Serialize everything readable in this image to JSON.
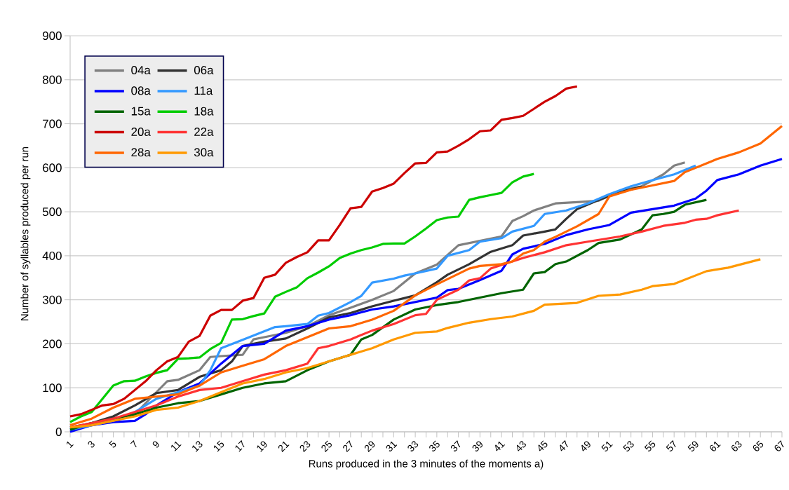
{
  "chart_data": {
    "type": "line",
    "xlabel": "Runs produced in the 3 minutes of the moments a)",
    "ylabel": "Number of syllables produced per run",
    "xlim": [
      1,
      67
    ],
    "xticks": [
      1,
      {
        "value": 2,
        "label": null
      },
      3,
      {
        "value": 4,
        "label": null
      },
      5,
      {
        "value": 6,
        "label": null
      },
      7,
      {
        "value": 8,
        "label": null
      },
      9,
      {
        "value": 10,
        "label": null
      },
      11,
      {
        "value": 12,
        "label": null
      },
      13,
      {
        "value": 14,
        "label": null
      },
      15,
      {
        "value": 16,
        "label": null
      },
      17,
      {
        "value": 18,
        "label": null
      },
      19,
      {
        "value": 20,
        "label": null
      },
      21,
      {
        "value": 22,
        "label": null
      },
      23,
      {
        "value": 24,
        "label": null
      },
      25,
      {
        "value": 26,
        "label": null
      },
      27,
      {
        "value": 28,
        "label": null
      },
      29,
      {
        "value": 30,
        "label": null
      },
      31,
      {
        "value": 32,
        "label": null
      },
      33,
      {
        "value": 34,
        "label": null
      },
      35,
      {
        "value": 36,
        "label": null
      },
      37,
      {
        "value": 38,
        "label": null
      },
      39,
      {
        "value": 40,
        "label": null
      },
      41,
      {
        "value": 42,
        "label": null
      },
      43,
      {
        "value": 44,
        "label": null
      },
      45,
      {
        "value": 46,
        "label": null
      },
      47,
      {
        "value": 48,
        "label": null
      },
      49,
      {
        "value": 50,
        "label": null
      },
      51,
      {
        "value": 52,
        "label": null
      },
      53,
      {
        "value": 54,
        "label": null
      },
      55,
      {
        "value": 56,
        "label": null
      },
      57,
      {
        "value": 58,
        "label": null
      },
      59,
      {
        "value": 60,
        "label": null
      },
      61,
      {
        "value": 62,
        "label": null
      },
      63,
      {
        "value": 64,
        "label": null
      },
      65,
      {
        "value": 66,
        "label": null
      },
      67
    ],
    "ylim": [
      0,
      900
    ],
    "yticks": [
      0,
      100,
      200,
      300,
      400,
      500,
      600,
      700,
      800,
      900
    ],
    "grid": "y",
    "legend": "top left",
    "marker": "none",
    "line_style": "solid",
    "series": [
      {
        "name": "04a",
        "color": "#808080",
        "x": [
          1,
          3,
          5,
          7,
          9,
          10,
          11,
          13,
          14,
          15,
          17,
          18,
          19,
          21,
          23,
          25,
          27,
          29,
          31,
          33,
          35,
          37,
          39,
          41,
          42,
          43,
          44,
          46,
          48,
          50,
          52,
          54,
          56,
          57,
          58
        ],
        "values": [
          10,
          15,
          30,
          40,
          90,
          115,
          118,
          140,
          170,
          172,
          175,
          210,
          215,
          225,
          240,
          265,
          282,
          300,
          320,
          360,
          380,
          424,
          434,
          444,
          479,
          490,
          503,
          519,
          522,
          525,
          548,
          558,
          585,
          605,
          612
        ]
      },
      {
        "name": "06a",
        "color": "#333333",
        "x": [
          1,
          3,
          5,
          7,
          9,
          11,
          13,
          15,
          16,
          17,
          19,
          21,
          23,
          25,
          27,
          29,
          31,
          33,
          35,
          36,
          38,
          40,
          42,
          43,
          45,
          46,
          47,
          48,
          50,
          52,
          54
        ],
        "values": [
          10,
          20,
          35,
          60,
          88,
          95,
          125,
          140,
          160,
          195,
          205,
          212,
          235,
          260,
          270,
          285,
          298,
          310,
          340,
          357,
          381,
          409,
          424,
          446,
          455,
          460,
          484,
          506,
          527,
          545,
          557
        ]
      },
      {
        "name": "08a",
        "color": "#0000ff",
        "x": [
          1,
          3,
          5,
          7,
          8,
          9,
          11,
          13,
          15,
          17,
          19,
          21,
          23,
          25,
          27,
          29,
          31,
          33,
          35,
          36,
          37,
          39,
          41,
          42,
          43,
          45,
          47,
          49,
          51,
          53,
          55,
          57,
          59,
          60,
          61,
          63,
          65,
          67
        ],
        "values": [
          0,
          15,
          22,
          25,
          40,
          60,
          90,
          110,
          155,
          195,
          200,
          230,
          240,
          255,
          265,
          278,
          285,
          295,
          305,
          322,
          325,
          345,
          366,
          403,
          416,
          427,
          447,
          460,
          470,
          498,
          506,
          514,
          530,
          548,
          572,
          585,
          605,
          620
        ]
      },
      {
        "name": "11a",
        "color": "#3399ff",
        "x": [
          1,
          3,
          5,
          7,
          9,
          11,
          13,
          14,
          15,
          17,
          20,
          21,
          23,
          24,
          25,
          27,
          28,
          29,
          31,
          32,
          33,
          35,
          36,
          38,
          39,
          41,
          42,
          44,
          45,
          47,
          49,
          51,
          53,
          55,
          57,
          59
        ],
        "values": [
          5,
          15,
          25,
          45,
          75,
          90,
          105,
          140,
          190,
          209,
          238,
          240,
          245,
          264,
          270,
          295,
          309,
          339,
          348,
          355,
          360,
          371,
          400,
          413,
          432,
          440,
          455,
          468,
          495,
          503,
          519,
          540,
          558,
          572,
          585,
          605
        ]
      },
      {
        "name": "15a",
        "color": "#006400",
        "x": [
          1,
          3,
          5,
          7,
          9,
          11,
          13,
          15,
          17,
          19,
          21,
          23,
          25,
          27,
          28,
          29,
          31,
          33,
          35,
          37,
          39,
          41,
          43,
          44,
          45,
          46,
          47,
          49,
          50,
          52,
          54,
          55,
          56,
          57,
          58,
          60
        ],
        "values": [
          5,
          20,
          30,
          40,
          55,
          65,
          70,
          85,
          100,
          110,
          115,
          140,
          160,
          175,
          210,
          220,
          255,
          278,
          288,
          295,
          305,
          315,
          323,
          360,
          363,
          381,
          387,
          413,
          429,
          437,
          460,
          492,
          495,
          500,
          516,
          527
        ]
      },
      {
        "name": "18a",
        "color": "#00cc00",
        "x": [
          1,
          2,
          3,
          4,
          5,
          6,
          7,
          8,
          9,
          10,
          11,
          12,
          13,
          14,
          15,
          16,
          17,
          18,
          19,
          20,
          21,
          22,
          23,
          24,
          25,
          26,
          27,
          28,
          29,
          30,
          31,
          32,
          33,
          34,
          35,
          36,
          37,
          38,
          39,
          40,
          41,
          42,
          43,
          44
        ],
        "values": [
          22,
          35,
          45,
          75,
          105,
          115,
          116,
          126,
          134,
          140,
          166,
          167,
          169,
          188,
          202,
          255,
          256,
          263,
          269,
          307,
          318,
          328,
          349,
          362,
          376,
          395,
          405,
          413,
          419,
          427,
          428,
          428,
          444,
          462,
          481,
          487,
          489,
          527,
          533,
          538,
          543,
          567,
          580,
          586
        ]
      },
      {
        "name": "20a",
        "color": "#cc0000",
        "x": [
          1,
          2,
          3,
          4,
          5,
          6,
          7,
          8,
          9,
          10,
          11,
          12,
          13,
          14,
          15,
          16,
          17,
          18,
          19,
          20,
          21,
          22,
          23,
          24,
          25,
          26,
          27,
          28,
          29,
          30,
          31,
          32,
          33,
          34,
          35,
          36,
          37,
          38,
          39,
          40,
          41,
          42,
          43,
          44,
          45,
          46,
          47,
          48
        ],
        "values": [
          35,
          40,
          50,
          60,
          63,
          75,
          95,
          115,
          140,
          160,
          170,
          205,
          218,
          264,
          277,
          277,
          298,
          304,
          350,
          357,
          384,
          397,
          408,
          435,
          435,
          470,
          508,
          511,
          546,
          554,
          564,
          588,
          610,
          611,
          635,
          637,
          650,
          665,
          683,
          685,
          709,
          713,
          718,
          734,
          750,
          763,
          780,
          785
        ]
      },
      {
        "name": "22a",
        "color": "#ff3333",
        "x": [
          1,
          3,
          5,
          7,
          9,
          11,
          13,
          15,
          17,
          19,
          21,
          23,
          24,
          25,
          27,
          29,
          31,
          33,
          34,
          35,
          37,
          38,
          39,
          40,
          43,
          45,
          47,
          49,
          52,
          54,
          56,
          58,
          59,
          60,
          61,
          63
        ],
        "values": [
          10,
          20,
          30,
          45,
          60,
          80,
          95,
          100,
          115,
          130,
          140,
          155,
          190,
          195,
          210,
          230,
          245,
          265,
          268,
          300,
          323,
          344,
          349,
          371,
          395,
          408,
          424,
          432,
          444,
          455,
          468,
          475,
          482,
          484,
          492,
          503
        ]
      },
      {
        "name": "28a",
        "color": "#ff6600",
        "x": [
          1,
          3,
          5,
          7,
          9,
          11,
          13,
          15,
          17,
          19,
          21,
          23,
          25,
          27,
          29,
          31,
          33,
          35,
          36,
          38,
          39,
          41,
          42,
          43,
          44,
          45,
          46,
          48,
          50,
          51,
          53,
          55,
          57,
          58,
          59,
          61,
          63,
          65,
          67
        ],
        "values": [
          15,
          30,
          55,
          75,
          80,
          85,
          105,
          135,
          150,
          165,
          195,
          215,
          235,
          240,
          255,
          275,
          310,
          335,
          347,
          371,
          377,
          381,
          387,
          405,
          413,
          432,
          443,
          467,
          495,
          535,
          550,
          560,
          570,
          590,
          600,
          620,
          635,
          655,
          695
        ]
      },
      {
        "name": "30a",
        "color": "#ff9900",
        "x": [
          1,
          3,
          5,
          7,
          9,
          11,
          13,
          15,
          17,
          19,
          21,
          23,
          25,
          27,
          29,
          31,
          33,
          35,
          36,
          38,
          40,
          42,
          44,
          45,
          48,
          50,
          52,
          54,
          55,
          57,
          60,
          62,
          65
        ],
        "values": [
          10,
          15,
          25,
          35,
          50,
          55,
          70,
          90,
          110,
          120,
          135,
          145,
          160,
          175,
          190,
          210,
          225,
          228,
          236,
          248,
          256,
          262,
          275,
          289,
          293,
          309,
          312,
          323,
          331,
          336,
          365,
          373,
          392
        ]
      }
    ]
  }
}
